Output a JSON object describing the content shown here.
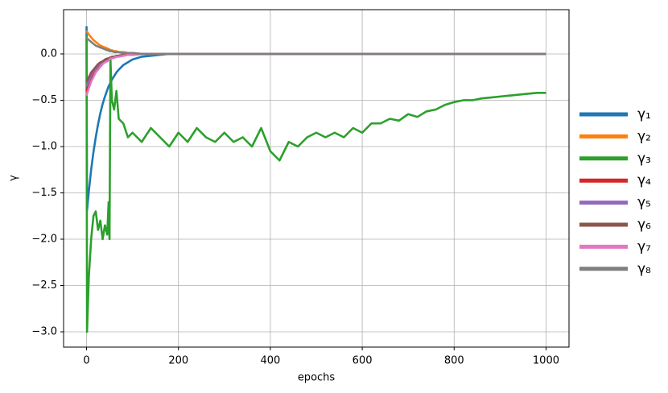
{
  "chart_data": {
    "type": "line",
    "xlabel": "epochs",
    "ylabel": "γ",
    "xlim": [
      -50,
      1050
    ],
    "ylim": [
      -3.165,
      0.478
    ],
    "xticks": [
      0,
      200,
      400,
      600,
      800,
      1000
    ],
    "yticks": [
      {
        "value": 0,
        "label": "0.0"
      },
      {
        "value": -0.5,
        "label": "−0.5"
      },
      {
        "value": -1,
        "label": "−1.0"
      },
      {
        "value": -1.5,
        "label": "−1.5"
      },
      {
        "value": -2,
        "label": "−2.0"
      },
      {
        "value": -2.5,
        "label": "−2.5"
      },
      {
        "value": -3,
        "label": "−3.0"
      }
    ],
    "grid": true,
    "legend": "outside right",
    "x": [
      0,
      1,
      5,
      10,
      15,
      20,
      25,
      30,
      35,
      40,
      45,
      48,
      50,
      52,
      55,
      60,
      65,
      70,
      80,
      90,
      100,
      120,
      140,
      160,
      180,
      200,
      220,
      240,
      260,
      280,
      300,
      320,
      340,
      360,
      380,
      400,
      420,
      440,
      460,
      480,
      500,
      520,
      540,
      560,
      580,
      600,
      620,
      640,
      660,
      680,
      700,
      720,
      740,
      760,
      780,
      800,
      820,
      840,
      860,
      880,
      900,
      920,
      940,
      960,
      980,
      1000
    ],
    "series": [
      {
        "name": "γ₁",
        "color": "#1f77b4",
        "values": [
          0.3,
          -1.69,
          -1.48,
          -1.25,
          -1.06,
          -0.9,
          -0.76,
          -0.64,
          -0.54,
          -0.46,
          -0.39,
          -0.35,
          -0.33,
          -0.31,
          -0.28,
          -0.24,
          -0.2,
          -0.17,
          -0.12,
          -0.09,
          -0.06,
          -0.03,
          -0.02,
          -0.01,
          0,
          0,
          0,
          0,
          0,
          0,
          0,
          0,
          0,
          0,
          0,
          0,
          0,
          0,
          0,
          0,
          0,
          0,
          0,
          0,
          0,
          0,
          0,
          0,
          0,
          0,
          0,
          0,
          0,
          0,
          0,
          0,
          0,
          0,
          0,
          0,
          0,
          0,
          0,
          0,
          0,
          0
        ]
      },
      {
        "name": "γ₂",
        "color": "#ff7f0e",
        "values": [
          0.25,
          0.24,
          0.21,
          0.18,
          0.15,
          0.13,
          0.11,
          0.09,
          0.08,
          0.07,
          0.06,
          0.05,
          0.05,
          0.04,
          0.04,
          0.03,
          0.03,
          0.02,
          0.02,
          0.01,
          0.01,
          0,
          0,
          0,
          0,
          0,
          0,
          0,
          0,
          0,
          0,
          0,
          0,
          0,
          0,
          0,
          0,
          0,
          0,
          0,
          0,
          0,
          0,
          0,
          0,
          0,
          0,
          0,
          0,
          0,
          0,
          0,
          0,
          0,
          0,
          0,
          0,
          0,
          0,
          0,
          0,
          0,
          0,
          0,
          0,
          0
        ]
      },
      {
        "name": "γ₃",
        "color": "#2ca02c",
        "values": [
          0.2,
          -3.0,
          -2.4,
          -2.0,
          -1.75,
          -1.7,
          -1.9,
          -1.8,
          -2.0,
          -1.85,
          -1.95,
          -1.6,
          -2.0,
          -0.05,
          -0.5,
          -0.6,
          -0.4,
          -0.7,
          -0.75,
          -0.9,
          -0.85,
          -0.95,
          -0.8,
          -0.9,
          -1.0,
          -0.85,
          -0.95,
          -0.8,
          -0.9,
          -0.95,
          -0.85,
          -0.95,
          -0.9,
          -1.0,
          -0.8,
          -1.05,
          -1.15,
          -0.95,
          -1.0,
          -0.9,
          -0.85,
          -0.9,
          -0.85,
          -0.9,
          -0.8,
          -0.85,
          -0.75,
          -0.75,
          -0.7,
          -0.72,
          -0.65,
          -0.68,
          -0.62,
          -0.6,
          -0.55,
          -0.52,
          -0.5,
          -0.5,
          -0.48,
          -0.47,
          -0.46,
          -0.45,
          -0.44,
          -0.43,
          -0.42,
          -0.42
        ]
      },
      {
        "name": "γ₄",
        "color": "#d62728",
        "values": [
          -0.4,
          -0.38,
          -0.33,
          -0.27,
          -0.22,
          -0.18,
          -0.15,
          -0.12,
          -0.1,
          -0.08,
          -0.07,
          -0.06,
          -0.06,
          -0.05,
          -0.04,
          -0.04,
          -0.03,
          -0.02,
          -0.02,
          -0.01,
          -0.01,
          0,
          0,
          0,
          0,
          0,
          0,
          0,
          0,
          0,
          0,
          0,
          0,
          0,
          0,
          0,
          0,
          0,
          0,
          0,
          0,
          0,
          0,
          0,
          0,
          0,
          0,
          0,
          0,
          0,
          0,
          0,
          0,
          0,
          0,
          0,
          0,
          0,
          0,
          0,
          0,
          0,
          0,
          0,
          0,
          0
        ]
      },
      {
        "name": "γ₅",
        "color": "#9467bd",
        "values": [
          -0.35,
          -0.34,
          -0.29,
          -0.23,
          -0.19,
          -0.16,
          -0.13,
          -0.11,
          -0.09,
          -0.07,
          -0.06,
          -0.05,
          -0.05,
          -0.04,
          -0.04,
          -0.03,
          -0.02,
          -0.02,
          -0.01,
          -0.01,
          -0.01,
          0,
          0,
          0,
          0,
          0,
          0,
          0,
          0,
          0,
          0,
          0,
          0,
          0,
          0,
          0,
          0,
          0,
          0,
          0,
          0,
          0,
          0,
          0,
          0,
          0,
          0,
          0,
          0,
          0,
          0,
          0,
          0,
          0,
          0,
          0,
          0,
          0,
          0,
          0,
          0,
          0,
          0,
          0,
          0,
          0
        ]
      },
      {
        "name": "γ₆",
        "color": "#8c564b",
        "values": [
          -0.3,
          -0.29,
          -0.25,
          -0.2,
          -0.17,
          -0.14,
          -0.11,
          -0.09,
          -0.08,
          -0.06,
          -0.05,
          -0.05,
          -0.04,
          -0.04,
          -0.03,
          -0.03,
          -0.02,
          -0.02,
          -0.01,
          -0.01,
          -0.01,
          0,
          0,
          0,
          0,
          0,
          0,
          0,
          0,
          0,
          0,
          0,
          0,
          0,
          0,
          0,
          0,
          0,
          0,
          0,
          0,
          0,
          0,
          0,
          0,
          0,
          0,
          0,
          0,
          0,
          0,
          0,
          0,
          0,
          0,
          0,
          0,
          0,
          0,
          0,
          0,
          0,
          0,
          0,
          0,
          0
        ]
      },
      {
        "name": "γ₇",
        "color": "#e377c2",
        "values": [
          -0.45,
          -0.43,
          -0.37,
          -0.3,
          -0.25,
          -0.2,
          -0.17,
          -0.14,
          -0.11,
          -0.09,
          -0.08,
          -0.07,
          -0.06,
          -0.05,
          -0.05,
          -0.04,
          -0.03,
          -0.03,
          -0.02,
          -0.01,
          -0.01,
          0,
          0,
          0,
          0,
          0,
          0,
          0,
          0,
          0,
          0,
          0,
          0,
          0,
          0,
          0,
          0,
          0,
          0,
          0,
          0,
          0,
          0,
          0,
          0,
          0,
          0,
          0,
          0,
          0,
          0,
          0,
          0,
          0,
          0,
          0,
          0,
          0,
          0,
          0,
          0,
          0,
          0,
          0,
          0,
          0
        ]
      },
      {
        "name": "γ₈",
        "color": "#7f7f7f",
        "values": [
          0.18,
          0.17,
          0.15,
          0.13,
          0.11,
          0.09,
          0.08,
          0.07,
          0.06,
          0.05,
          0.04,
          0.04,
          0.03,
          0.03,
          0.03,
          0.02,
          0.02,
          0.02,
          0.01,
          0.01,
          0.01,
          0,
          0,
          0,
          0,
          0,
          0,
          0,
          0,
          0,
          0,
          0,
          0,
          0,
          0,
          0,
          0,
          0,
          0,
          0,
          0,
          0,
          0,
          0,
          0,
          0,
          0,
          0,
          0,
          0,
          0,
          0,
          0,
          0,
          0,
          0,
          0,
          0,
          0,
          0,
          0,
          0,
          0,
          0,
          0,
          0
        ]
      }
    ]
  }
}
